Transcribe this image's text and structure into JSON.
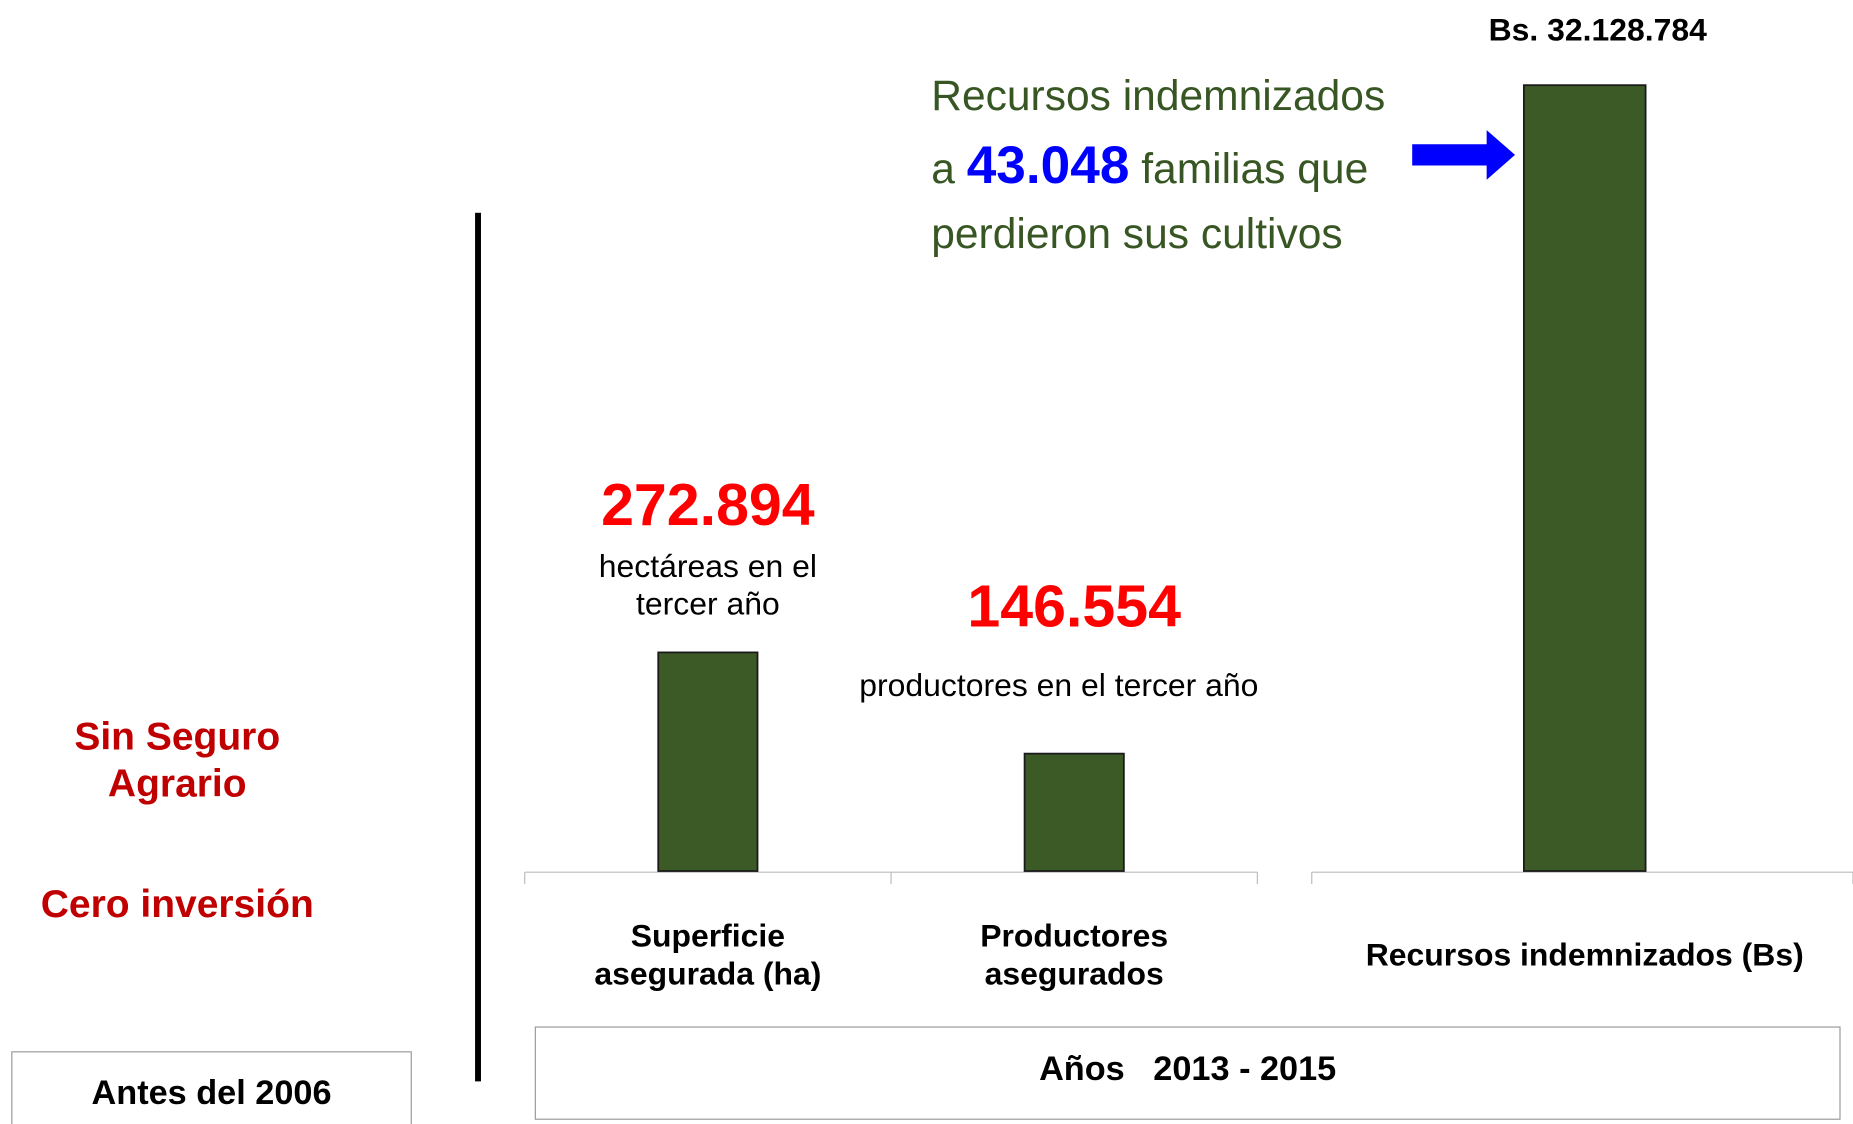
{
  "left_panel": {
    "title": "Sin Seguro Agrario",
    "subtitle": "Cero inversión",
    "period": "Antes del 2006"
  },
  "period": "Años   2013 - 2015",
  "chart_data": [
    {
      "type": "bar",
      "categories": [
        "Superficie asegurada (ha)",
        "Productores asegurados"
      ],
      "values": [
        272894,
        146554
      ],
      "value_labels": [
        "272.894",
        "146.554"
      ],
      "annotations": [
        "hectáreas en el tercer año",
        "productores  en el tercer año"
      ],
      "color": "#3b5a25"
    },
    {
      "type": "bar",
      "categories": [
        "Recursos indemnizados (Bs)"
      ],
      "values": [
        32128784
      ],
      "value_labels": [
        "Bs. 32.128.784"
      ],
      "color": "#3b5a25",
      "note": {
        "before": "Recursos indemnizados a",
        "highlight": "43.048",
        "after": "familias que perdieron sus cultivos"
      }
    }
  ]
}
